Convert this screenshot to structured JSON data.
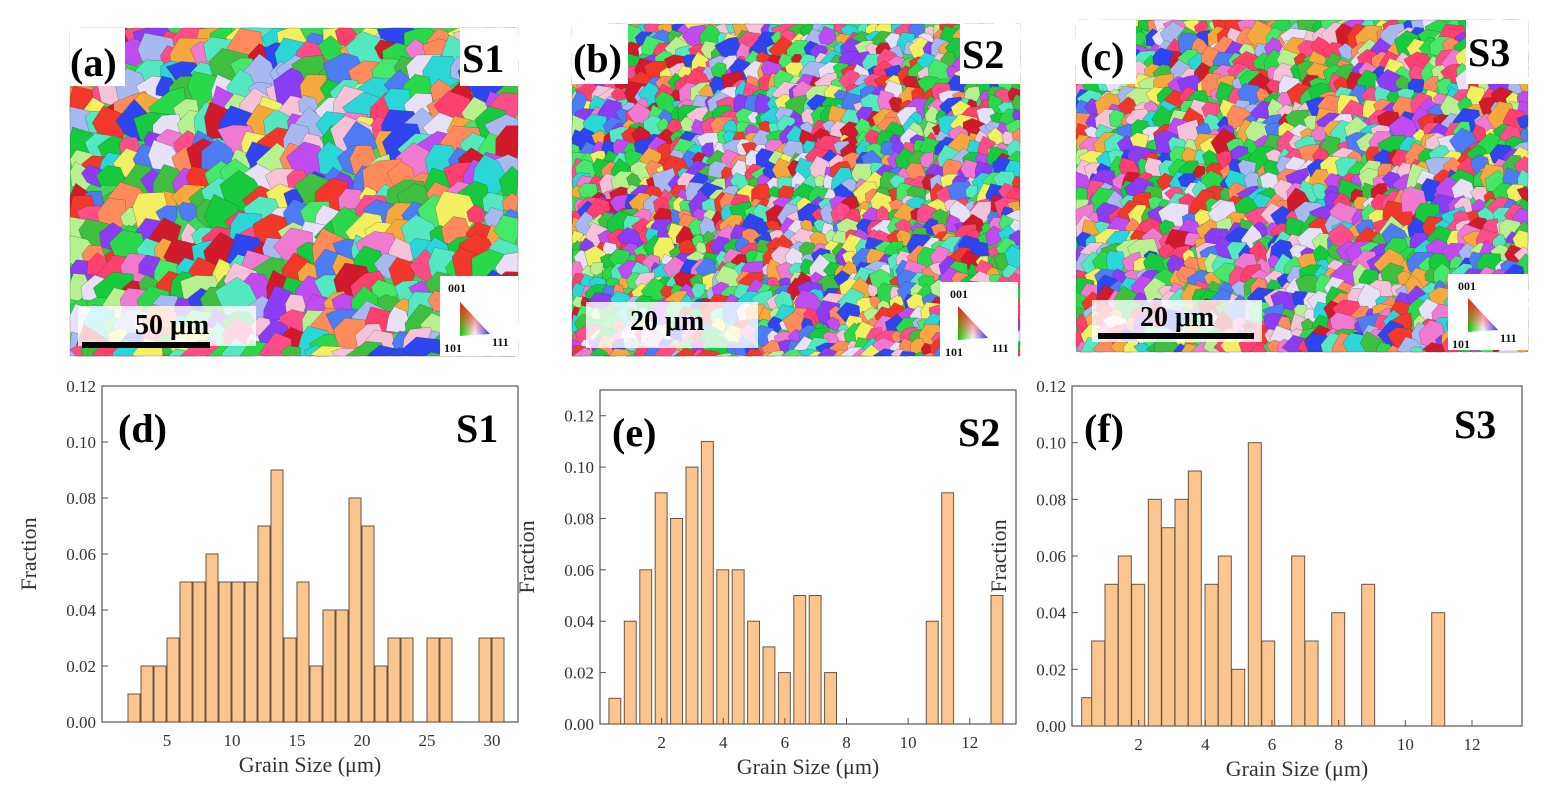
{
  "ebsd_maps": [
    {
      "panel": "(a)",
      "sample": "S1",
      "scale_bar": "50 μm",
      "legend": {
        "top": "001",
        "left": "101",
        "right": "111"
      }
    },
    {
      "panel": "(b)",
      "sample": "S2",
      "scale_bar": "20 μm",
      "legend": {
        "top": "001",
        "left": "101",
        "right": "111"
      }
    },
    {
      "panel": "(c)",
      "sample": "S3",
      "scale_bar": "20 μm",
      "legend": {
        "top": "001",
        "left": "101",
        "right": "111"
      }
    }
  ],
  "colors": {
    "bar_fill": "#fbc590",
    "bar_stroke": "#6b5540",
    "axis": "#555555",
    "grain_palette": [
      "#29d94a",
      "#46e86a",
      "#17c93d",
      "#f2382a",
      "#d11b2c",
      "#ff4d8a",
      "#f07ad0",
      "#c04bf0",
      "#8a3df5",
      "#2e45f0",
      "#4d7cf5",
      "#2ad6d6",
      "#54e8c0",
      "#f2f060",
      "#f5a83d",
      "#ff8a5c",
      "#b8f090",
      "#f5c2d8",
      "#a8b8f0",
      "#e8e0f5",
      "#ff3f6e",
      "#3fbf3f"
    ]
  },
  "chart_data": [
    {
      "type": "bar",
      "panel": "(d)",
      "sample": "S1",
      "xlabel": "Grain Size (μm)",
      "ylabel": "Fraction",
      "xlim": [
        0,
        32
      ],
      "ylim": [
        0,
        0.12
      ],
      "xticks": [
        5,
        10,
        15,
        20,
        25,
        30
      ],
      "yticks": [
        0.0,
        0.02,
        0.04,
        0.06,
        0.08,
        0.1,
        0.12
      ],
      "bar_width": 1,
      "x": [
        2.5,
        3.5,
        4.5,
        5.5,
        6.5,
        7.5,
        8.5,
        9.5,
        10.5,
        11.5,
        12.5,
        13.5,
        14.5,
        15.5,
        16.5,
        17.5,
        18.5,
        19.5,
        20.5,
        21.5,
        22.5,
        23.5,
        25.5,
        26.5,
        29.5,
        30.5
      ],
      "values": [
        0.01,
        0.02,
        0.02,
        0.03,
        0.05,
        0.05,
        0.06,
        0.05,
        0.05,
        0.05,
        0.07,
        0.09,
        0.03,
        0.05,
        0.02,
        0.04,
        0.04,
        0.08,
        0.07,
        0.02,
        0.03,
        0.03,
        0.03,
        0.03,
        0.03,
        0.03
      ]
    },
    {
      "type": "bar",
      "panel": "(e)",
      "sample": "S2",
      "xlabel": "Grain Size (μm)",
      "ylabel": "Fraction",
      "xlim": [
        0,
        13.5
      ],
      "ylim": [
        0,
        0.13
      ],
      "xticks": [
        2,
        4,
        6,
        8,
        10,
        12
      ],
      "yticks": [
        0.0,
        0.02,
        0.04,
        0.06,
        0.08,
        0.1,
        0.12
      ],
      "bar_width": 0.42,
      "x": [
        0.5,
        1.0,
        1.5,
        2.0,
        2.5,
        3.0,
        3.5,
        4.0,
        4.5,
        5.0,
        5.5,
        6.0,
        6.5,
        7.0,
        7.5,
        10.8,
        11.3,
        12.9
      ],
      "values": [
        0.01,
        0.04,
        0.06,
        0.09,
        0.08,
        0.1,
        0.11,
        0.06,
        0.06,
        0.04,
        0.03,
        0.02,
        0.05,
        0.05,
        0.02,
        0.04,
        0.09,
        0.05
      ]
    },
    {
      "type": "bar",
      "panel": "(f)",
      "sample": "S3",
      "xlabel": "Grain Size (μm)",
      "ylabel": "Fraction",
      "xlim": [
        0,
        13.5
      ],
      "ylim": [
        0,
        0.12
      ],
      "xticks": [
        2,
        4,
        6,
        8,
        10,
        12
      ],
      "yticks": [
        0.0,
        0.02,
        0.04,
        0.06,
        0.08,
        0.1,
        0.12
      ],
      "bar_width": 0.42,
      "x": [
        0.5,
        0.8,
        1.2,
        1.6,
        2.0,
        2.5,
        2.9,
        3.3,
        3.7,
        4.2,
        4.6,
        5.0,
        5.5,
        5.9,
        6.8,
        7.2,
        8.0,
        8.9,
        11.0
      ],
      "values": [
        0.01,
        0.03,
        0.05,
        0.06,
        0.05,
        0.08,
        0.07,
        0.08,
        0.09,
        0.05,
        0.06,
        0.02,
        0.1,
        0.03,
        0.06,
        0.03,
        0.04,
        0.05,
        0.04
      ]
    }
  ]
}
